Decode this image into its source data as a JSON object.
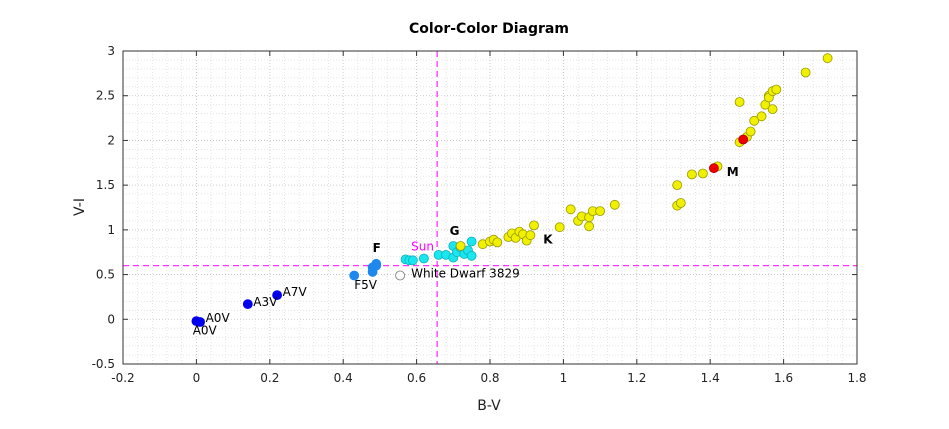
{
  "chart_data": {
    "type": "scatter",
    "title": "Color-Color Diagram",
    "xlabel": "B-V",
    "ylabel": "V-I",
    "xlim": [
      -0.2,
      1.8
    ],
    "ylim": [
      -0.5,
      3
    ],
    "xticks": [
      "-0.2",
      "0",
      "0.2",
      "0.4",
      "0.6",
      "0.8",
      "1",
      "1.2",
      "1.4",
      "1.6",
      "1.8"
    ],
    "yticks": [
      "-0.5",
      "0",
      "0.5",
      "1",
      "1.5",
      "2",
      "2.5",
      "3"
    ],
    "grid": true,
    "minor_grid": true,
    "reference_lines": {
      "x": 0.656,
      "y": 0.6,
      "color": "#ff33ff"
    },
    "series": [
      {
        "color": "#0000ee",
        "points": [
          [
            0.0,
            -0.02
          ],
          [
            0.01,
            -0.03
          ],
          [
            0.14,
            0.17
          ],
          [
            0.22,
            0.27
          ]
        ]
      },
      {
        "color": "#1e88ee",
        "points": [
          [
            0.43,
            0.49
          ],
          [
            0.48,
            0.53
          ],
          [
            0.48,
            0.58
          ],
          [
            0.49,
            0.62
          ],
          [
            0.49,
            0.6
          ]
        ]
      },
      {
        "color": "#19e6ee",
        "points": [
          [
            0.57,
            0.67
          ],
          [
            0.58,
            0.66
          ],
          [
            0.59,
            0.66
          ],
          [
            0.62,
            0.68
          ],
          [
            0.66,
            0.72
          ],
          [
            0.68,
            0.72
          ],
          [
            0.7,
            0.69
          ],
          [
            0.7,
            0.82
          ],
          [
            0.71,
            0.75
          ],
          [
            0.72,
            0.8
          ],
          [
            0.73,
            0.73
          ],
          [
            0.74,
            0.77
          ],
          [
            0.75,
            0.71
          ],
          [
            0.75,
            0.87
          ]
        ]
      },
      {
        "color": "#f0f000",
        "points": [
          [
            0.72,
            0.82
          ],
          [
            0.78,
            0.84
          ],
          [
            0.8,
            0.87
          ],
          [
            0.81,
            0.89
          ],
          [
            0.82,
            0.86
          ],
          [
            0.85,
            0.92
          ],
          [
            0.86,
            0.96
          ],
          [
            0.87,
            0.91
          ],
          [
            0.88,
            0.98
          ],
          [
            0.89,
            0.95
          ],
          [
            0.9,
            0.88
          ],
          [
            0.92,
            1.05
          ],
          [
            0.91,
            0.94
          ],
          [
            0.99,
            1.03
          ],
          [
            1.02,
            1.23
          ],
          [
            1.04,
            1.1
          ],
          [
            1.05,
            1.15
          ],
          [
            1.07,
            1.04
          ],
          [
            1.07,
            1.14
          ],
          [
            1.08,
            1.21
          ],
          [
            1.1,
            1.21
          ],
          [
            1.14,
            1.28
          ],
          [
            1.31,
            1.27
          ],
          [
            1.31,
            1.5
          ],
          [
            1.32,
            1.3
          ],
          [
            1.35,
            1.62
          ],
          [
            1.38,
            1.63
          ],
          [
            1.42,
            1.71
          ],
          [
            1.48,
            1.98
          ],
          [
            1.48,
            2.43
          ],
          [
            1.5,
            2.04
          ],
          [
            1.51,
            2.1
          ],
          [
            1.52,
            2.22
          ],
          [
            1.54,
            2.27
          ],
          [
            1.55,
            2.4
          ],
          [
            1.56,
            2.5
          ],
          [
            1.56,
            2.48
          ],
          [
            1.57,
            2.35
          ],
          [
            1.57,
            2.55
          ],
          [
            1.58,
            2.57
          ],
          [
            1.66,
            2.76
          ],
          [
            1.72,
            2.92
          ]
        ]
      },
      {
        "color": "#ee0000",
        "points": [
          [
            1.41,
            1.69
          ],
          [
            1.49,
            2.01
          ]
        ]
      },
      {
        "color": "#ffffff",
        "points": [
          [
            0.555,
            0.49
          ]
        ]
      }
    ],
    "annotations": [
      {
        "text": "A0V",
        "x": 0.025,
        "y": -0.03,
        "weight": "normal",
        "color": "#000000"
      },
      {
        "text": "A0V",
        "x": -0.01,
        "y": -0.17,
        "weight": "normal",
        "color": "#000000"
      },
      {
        "text": "A3V",
        "x": 0.155,
        "y": 0.15,
        "weight": "normal",
        "color": "#000000"
      },
      {
        "text": "A7V",
        "x": 0.235,
        "y": 0.26,
        "weight": "normal",
        "color": "#000000"
      },
      {
        "text": "F5V",
        "x": 0.43,
        "y": 0.34,
        "weight": "normal",
        "color": "#000000"
      },
      {
        "text": "F",
        "x": 0.48,
        "y": 0.75,
        "weight": "bold",
        "color": "#000000"
      },
      {
        "text": "Sun",
        "x": 0.585,
        "y": 0.77,
        "weight": "normal",
        "color": "#ff00ff"
      },
      {
        "text": "G",
        "x": 0.69,
        "y": 0.94,
        "weight": "bold",
        "color": "#000000"
      },
      {
        "text": "K",
        "x": 0.945,
        "y": 0.85,
        "weight": "bold",
        "color": "#000000"
      },
      {
        "text": "M",
        "x": 1.445,
        "y": 1.6,
        "weight": "bold",
        "color": "#000000"
      },
      {
        "text": "White Dwarf 3829",
        "x": 0.585,
        "y": 0.47,
        "weight": "normal",
        "color": "#000000"
      }
    ]
  }
}
